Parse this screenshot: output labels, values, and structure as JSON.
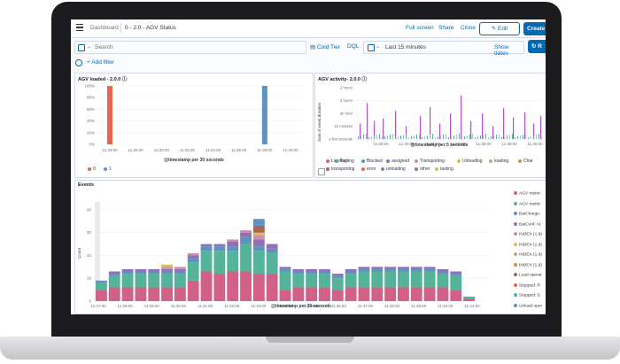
{
  "topbar": {
    "breadcrumb_root": "Dashboard",
    "breadcrumb_current": "0 - 2.0 - AGV Status",
    "full_screen": "Full screen",
    "share": "Share",
    "clone": "Clone",
    "edit": "Edit",
    "create": "Create"
  },
  "query": {
    "placeholder": "Search",
    "cold_tier": "Cold Tier",
    "dql": "DQL",
    "time_range": "Last 15 minutes",
    "show_dates": "Show dates",
    "refresh_label": "R"
  },
  "filters": {
    "add_filter": "+ Add filter"
  },
  "panels": {
    "agv_loaded": {
      "title": "AGV loaded - 2.0.0",
      "xlabel": "@timestamp per 30 seconds",
      "legend": [
        {
          "label": "0",
          "color": "#e7664c"
        },
        {
          "label": "1",
          "color": "#6092c0"
        }
      ]
    },
    "agv_activity": {
      "title": "AGV activity- 2.0.0",
      "xlabel": "@timestamp per 5 seconds",
      "ylabel": "Sum of event.duration",
      "legend": [
        {
          "label": "Loading",
          "color": "#d36086"
        },
        {
          "label": "Tasting",
          "color": "#54b399"
        },
        {
          "label": "Blocked",
          "color": "#6092c0"
        },
        {
          "label": "assigned",
          "color": "#9170b8"
        },
        {
          "label": "Transporting",
          "color": "#ca8eae"
        },
        {
          "label": "Unloading",
          "color": "#d6bf57"
        },
        {
          "label": "loading",
          "color": "#b9a888"
        },
        {
          "label": "Char",
          "color": "#da8b45"
        },
        {
          "label": "transporting",
          "color": "#aa6556"
        },
        {
          "label": "error",
          "color": "#e7664c"
        },
        {
          "label": "unloading",
          "color": "#6092c0"
        },
        {
          "label": "other",
          "color": "#9170b8"
        },
        {
          "label": "tasting",
          "color": "#d6bf57"
        }
      ]
    },
    "events": {
      "title": "Events",
      "xlabel": "@timestamp per 30 seconds",
      "ylabel": "Count",
      "legend": [
        {
          "label": "AGV metric",
          "color": "#d36086"
        },
        {
          "label": "AGV metric",
          "color": "#54b399"
        },
        {
          "label": "BatCharge:",
          "color": "#6092c0"
        },
        {
          "label": "BatConf: A(",
          "color": "#9170b8"
        },
        {
          "label": "INDEX (1.d)",
          "color": "#ca8eae"
        },
        {
          "label": "INDEX (1.d)",
          "color": "#d6bf57"
        },
        {
          "label": "INDEX (1.d)",
          "color": "#b9a888"
        },
        {
          "label": "INDEX (1.d)",
          "color": "#da8b45"
        },
        {
          "label": "Load operat",
          "color": "#aa6556"
        },
        {
          "label": "Stopped: R",
          "color": "#e7664c"
        },
        {
          "label": "Stopped: S",
          "color": "#54b399"
        },
        {
          "label": "Unload oper",
          "color": "#6092c0"
        },
        {
          "label": "INDEX (1.d)",
          "color": "#9170b8"
        },
        {
          "label": "INDEX (1.d)",
          "color": "#d36086"
        }
      ]
    }
  },
  "chart_data": [
    {
      "type": "bar",
      "title": "AGV loaded - 2.0.0",
      "xlabel": "@timestamp per 30 seconds",
      "x_ticks": [
        "11:26:00",
        "11:28:00",
        "11:30:00",
        "11:32:00",
        "11:34:00",
        "11:36:00",
        "11:38:00",
        "11:40:00"
      ],
      "y_ticks": [
        "0%",
        "20%",
        "40%",
        "60%",
        "80%",
        "100%"
      ],
      "ylim": [
        0,
        100
      ],
      "series": [
        {
          "name": "0",
          "points": [
            {
              "x": "11:26:00",
              "y": 100
            }
          ]
        },
        {
          "name": "1",
          "points": [
            {
              "x": "11:38:00",
              "y": 100
            }
          ]
        }
      ]
    },
    {
      "type": "bar",
      "title": "AGV activity- 2.0.0",
      "xlabel": "@timestamp per 5 seconds",
      "ylabel": "Sum of event.duration",
      "x_ticks": [
        "11:28:00",
        "11:30:00",
        "11:32:00",
        "11:34:00",
        "11:36:00",
        "11:38:00",
        "11:40:00"
      ],
      "y_ticks": [
        "a few seconds",
        "15 minutes",
        "an hour",
        "2 hours",
        "2 hours"
      ]
    },
    {
      "type": "bar",
      "title": "Events",
      "xlabel": "@timestamp per 30 seconds",
      "ylabel": "Count",
      "x_ticks": [
        "11:27:00",
        "11:28:00",
        "11:29:00",
        "11:30:00",
        "11:31:00",
        "11:32:00",
        "11:33:00",
        "11:34:00",
        "11:35:00",
        "11:36:00",
        "11:37:00",
        "11:38:00",
        "11:39:00",
        "11:40:00",
        "11:41:00"
      ],
      "y_ticks": [
        "0",
        "10",
        "20",
        "30",
        "40"
      ],
      "ylim": [
        0,
        45
      ],
      "categories_count": 29,
      "series": [
        {
          "name": "AGV metric",
          "values": [
            5,
            6,
            6,
            6,
            6,
            6,
            6,
            9,
            13,
            12,
            13,
            13,
            12,
            12,
            5,
            6,
            6,
            6,
            5,
            6,
            6,
            6,
            6,
            6,
            6,
            6,
            6,
            5,
            1
          ]
        },
        {
          "name": "AGV metric",
          "values": [
            3,
            5,
            6,
            6,
            6,
            6,
            6,
            8,
            9,
            10,
            9,
            12,
            10,
            9,
            8,
            6,
            6,
            6,
            5,
            6,
            7,
            7,
            7,
            7,
            7,
            7,
            6,
            6,
            1
          ]
        },
        {
          "name": "BatCharge:",
          "values": [
            1,
            1,
            1,
            1,
            1,
            1,
            1,
            2,
            2,
            2,
            2,
            3,
            2,
            2,
            1,
            1,
            1,
            1,
            1,
            1,
            1,
            1,
            1,
            1,
            1,
            1,
            1,
            1,
            0
          ]
        },
        {
          "name": "BatConf: A(",
          "values": [
            0,
            1,
            1,
            1,
            1,
            1,
            1,
            1,
            1,
            1,
            2,
            2,
            3,
            2,
            1,
            1,
            1,
            1,
            1,
            1,
            1,
            1,
            1,
            1,
            1,
            1,
            1,
            1,
            0
          ]
        },
        {
          "name": "INDEX (1.d)",
          "values": [
            0,
            0,
            0,
            0,
            0,
            1,
            1,
            1,
            0,
            0,
            1,
            1,
            2,
            0,
            0,
            0,
            0,
            0,
            0,
            0,
            0,
            0,
            0,
            0,
            0,
            0,
            0,
            0,
            0
          ]
        },
        {
          "name": "INDEX (1.d)",
          "values": [
            0,
            0,
            0,
            0,
            0,
            1,
            0,
            0,
            0,
            0,
            0,
            0,
            1,
            0,
            0,
            0,
            0,
            0,
            0,
            0,
            0,
            0,
            0,
            0,
            0,
            0,
            0,
            0,
            0
          ]
        },
        {
          "name": "Load operat",
          "values": [
            0,
            0,
            0,
            0,
            0,
            0,
            0,
            0,
            0,
            0,
            0,
            0,
            3,
            0,
            0,
            0,
            0,
            0,
            0,
            0,
            0,
            0,
            0,
            0,
            0,
            0,
            0,
            0,
            0
          ]
        },
        {
          "name": "Unload oper",
          "values": [
            0,
            0,
            0,
            0,
            0,
            0,
            0,
            0,
            0,
            0,
            0,
            0,
            3,
            0,
            0,
            0,
            0,
            0,
            0,
            0,
            0,
            0,
            0,
            0,
            0,
            0,
            0,
            0,
            0
          ]
        }
      ]
    }
  ]
}
